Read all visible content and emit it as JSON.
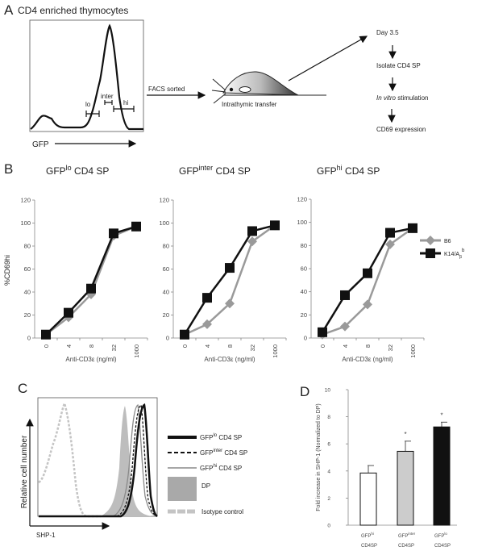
{
  "panel_labels": {
    "a": "A",
    "b": "B",
    "c": "C",
    "d": "D"
  },
  "panel_a": {
    "title": "CD4 enriched thymocytes",
    "gates": [
      "lo",
      "inter",
      "hi"
    ],
    "x_label": "GFP",
    "sort_label": "FACS sorted",
    "transfer_label": "Intrathymic transfer",
    "steps": [
      {
        "pre": "",
        "italic": "",
        "text": "Day 3.5"
      },
      {
        "pre": "",
        "italic": "",
        "text": "Isolate CD4 SP"
      },
      {
        "pre": "",
        "italic": "In vitro",
        "text": " stimulation"
      },
      {
        "pre": "",
        "italic": "",
        "text": "CD69 expression"
      }
    ]
  },
  "panel_c": {
    "y_label": "Relative cell number",
    "x_label": "SHP-1",
    "legend": [
      {
        "base": "GFP",
        "sup": "lo",
        "rest": " CD4 SP",
        "color": "#111111"
      },
      {
        "base": "GFP",
        "sup": "inter",
        "rest": " CD4 SP",
        "color": "#111111"
      },
      {
        "base": "GFP",
        "sup": "hi",
        "rest": " CD4 SP",
        "color": "#8a8a8a"
      },
      {
        "base": "DP",
        "sup": "",
        "rest": "",
        "color": "#a9a9a9"
      },
      {
        "base": "Isotype control",
        "sup": "",
        "rest": "",
        "color": "#c4c4c4"
      }
    ]
  },
  "colors": {
    "b6": "#9a9a9a",
    "k14": "#111111",
    "bar_inter": "#cccccc",
    "bar_lo": "#111111"
  },
  "chart_data": [
    {
      "type": "line",
      "title": {
        "base": "GFP",
        "sup": "lo",
        "rest": " CD4 SP"
      },
      "categories": [
        "0",
        "4",
        "8",
        "32",
        "1000"
      ],
      "xlabel": "Anti-CD3ε (ng/ml)",
      "ylabel": "%CD69hi",
      "ylim": [
        0,
        120
      ],
      "yticks": [
        "0",
        "20",
        "40",
        "60",
        "80",
        "100",
        "120"
      ],
      "series": [
        {
          "name": "B6",
          "values": [
            3,
            18,
            38,
            89,
            97
          ]
        },
        {
          "name": "K14/Aβb",
          "values": [
            3,
            22,
            43,
            91,
            97
          ]
        }
      ]
    },
    {
      "type": "line",
      "title": {
        "base": "GFP",
        "sup": "inter",
        "rest": " CD4 SP"
      },
      "categories": [
        "0",
        "4",
        "8",
        "32",
        "1000"
      ],
      "xlabel": "Anti-CD3ε (ng/ml)",
      "ylim": [
        0,
        120
      ],
      "yticks": [
        "0",
        "20",
        "40",
        "60",
        "80",
        "100",
        "120"
      ],
      "series": [
        {
          "name": "B6",
          "values": [
            3,
            12,
            30,
            84,
            98
          ]
        },
        {
          "name": "K14/Aβb",
          "values": [
            3,
            35,
            61,
            93,
            98
          ]
        }
      ]
    },
    {
      "type": "line",
      "title": {
        "base": "GFP",
        "sup": "hi",
        "rest": " CD4 SP"
      },
      "categories": [
        "0",
        "4",
        "8",
        "32",
        "1000"
      ],
      "xlabel": "Anti-CD3ε (ng/ml)",
      "ylim": [
        0,
        120
      ],
      "yticks": [
        "0",
        "20",
        "40",
        "60",
        "80",
        "100",
        "120"
      ],
      "legend_position": "right",
      "legend": [
        {
          "name": "B6",
          "marker": "diamond"
        },
        {
          "name": "K14/A",
          "sub": "β",
          "sup": "b",
          "marker": "square"
        }
      ],
      "series": [
        {
          "name": "B6",
          "values": [
            3,
            10,
            29,
            81,
            95
          ]
        },
        {
          "name": "K14/Aβb",
          "values": [
            5,
            37,
            56,
            91,
            95
          ]
        }
      ]
    },
    {
      "type": "bar",
      "ylabel": "Fold increase in SHP-1 (Normalized to DP)",
      "ylim": [
        0,
        10
      ],
      "yticks": [
        "0",
        "2",
        "4",
        "6",
        "8",
        "10"
      ],
      "categories": [
        {
          "base": "GFP",
          "sup": "hi",
          "line2": "CD4SP"
        },
        {
          "base": "GFP",
          "sup": "inter",
          "line2": "CD4SP"
        },
        {
          "base": "GFP",
          "sup": "lo",
          "line2": "CD4SP"
        }
      ],
      "values": [
        3.85,
        5.45,
        7.25
      ],
      "errors": [
        0.55,
        0.75,
        0.35
      ],
      "significance": [
        "",
        "*",
        "*"
      ]
    }
  ]
}
